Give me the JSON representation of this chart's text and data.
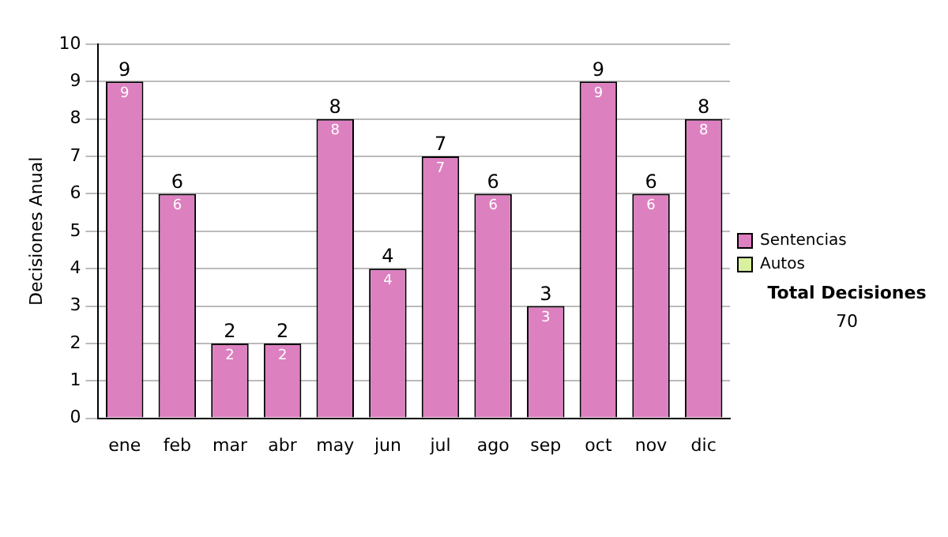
{
  "chart_data": {
    "type": "bar",
    "ylabel": "Decisiones Anual",
    "categories": [
      "ene",
      "feb",
      "mar",
      "abr",
      "may",
      "jun",
      "jul",
      "ago",
      "sep",
      "oct",
      "nov",
      "dic"
    ],
    "series": [
      {
        "name": "Sentencias",
        "color": "#dd80c0",
        "values": [
          9,
          6,
          2,
          2,
          8,
          4,
          7,
          6,
          3,
          9,
          6,
          8
        ],
        "value_labels": [
          "9",
          "6",
          "2",
          "2",
          "8",
          "4",
          "7",
          "6",
          "3",
          "9",
          "6",
          "8"
        ]
      },
      {
        "name": "Autos",
        "color": "#d8f0a0",
        "values": [
          0,
          0,
          0,
          0,
          0,
          0,
          0,
          0,
          0,
          0,
          0,
          0
        ],
        "value_labels": [
          null,
          null,
          null,
          null,
          null,
          null,
          null,
          null,
          null,
          null,
          null,
          null
        ]
      }
    ],
    "stacked": true,
    "totals": [
      "9",
      "6",
      "2",
      "2",
      "8",
      "4",
      "7",
      "6",
      "3",
      "9",
      "6",
      "8"
    ],
    "ylim": [
      0,
      10
    ],
    "yticks": [
      0,
      1,
      2,
      3,
      4,
      5,
      6,
      7,
      8,
      9,
      10
    ],
    "grid": "y",
    "legend": "right",
    "annotations": [
      "Total Decisiones",
      "70"
    ]
  }
}
